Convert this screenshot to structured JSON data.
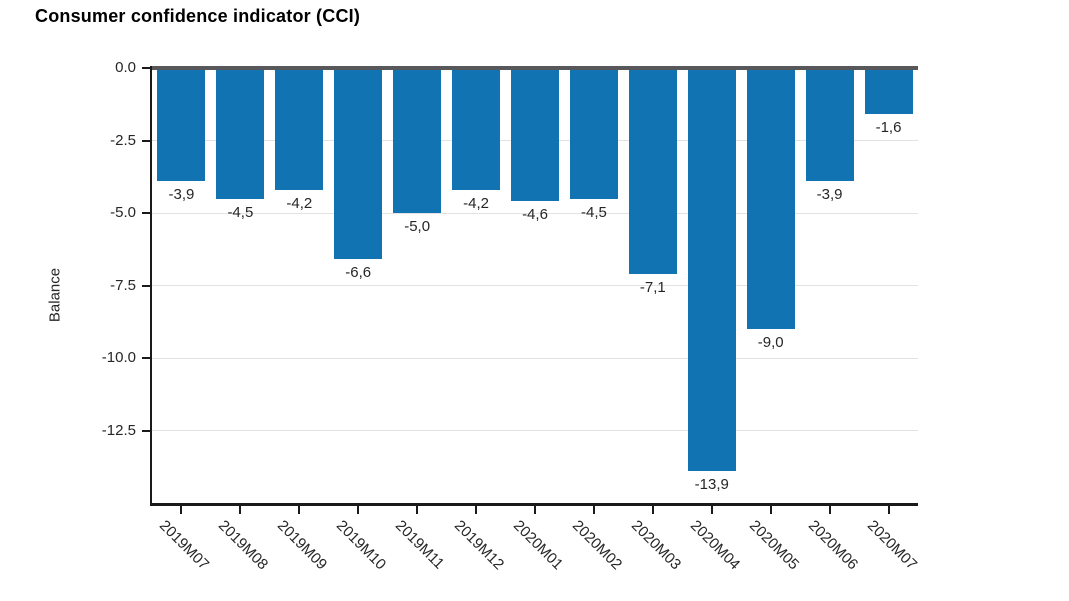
{
  "page": {
    "title": "Consumer confidence indicator (CCI)"
  },
  "chart_data": {
    "type": "bar",
    "title": "Consumer confidence indicator (CCI)",
    "xlabel": "",
    "ylabel": "Balance",
    "categories": [
      "2019M07",
      "2019M08",
      "2019M09",
      "2019M10",
      "2019M11",
      "2019M12",
      "2020M01",
      "2020M02",
      "2020M03",
      "2020M04",
      "2020M05",
      "2020M06",
      "2020M07"
    ],
    "values": [
      -3.9,
      -4.5,
      -4.2,
      -6.6,
      -5.0,
      -4.2,
      -4.6,
      -4.5,
      -7.1,
      -13.9,
      -9.0,
      -3.9,
      -1.6
    ],
    "value_labels": [
      "-3,9",
      "-4,5",
      "-4,2",
      "-6,6",
      "-5,0",
      "-4,2",
      "-4,6",
      "-4,5",
      "-7,1",
      "-13,9",
      "-9,0",
      "-3,9",
      "-1,6"
    ],
    "yticks": [
      0.0,
      -2.5,
      -5.0,
      -7.5,
      -10.0,
      -12.5
    ],
    "ytick_labels": [
      "0.0",
      "-2.5",
      "-5.0",
      "-7.5",
      "-10.0",
      "-12.5"
    ],
    "ylim": [
      -15,
      0
    ],
    "grid": true,
    "legend_position": "none",
    "colors": {
      "bar": "#1273b2",
      "zero_line": "#58585b",
      "axis": "#1a1a1a",
      "gridline": "#e2e2e2",
      "text": "#262626",
      "title_text": "#000000"
    }
  }
}
